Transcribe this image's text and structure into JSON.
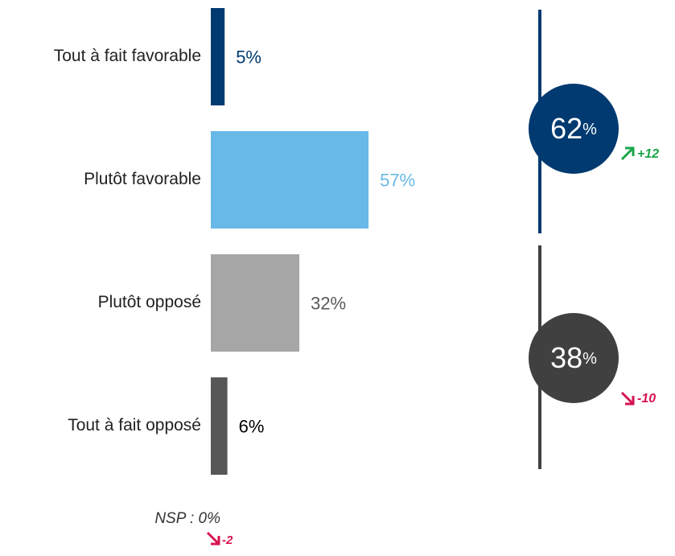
{
  "chart_data": {
    "type": "bar",
    "orientation": "horizontal",
    "categories": [
      "Tout à fait favorable",
      "Plutôt favorable",
      "Plutôt opposé",
      "Tout à fait opposé"
    ],
    "values": [
      5,
      57,
      32,
      6
    ],
    "value_labels": [
      "5%",
      "57%",
      "32%",
      "6%"
    ],
    "colors": [
      "#003a70",
      "#68b8e8",
      "#a6a6a6",
      "#575757"
    ],
    "label_colors": [
      "#003a70",
      "#68b8e8",
      "#595959",
      "#000000"
    ],
    "groups": [
      {
        "value": 62,
        "value_label": "62",
        "unit": "%",
        "change": "+12",
        "color": "#003a70",
        "change_color": "#1aa64a"
      },
      {
        "value": 38,
        "value_label": "38",
        "unit": "%",
        "change": "-10",
        "color": "#404040",
        "change_color": "#d6134f"
      }
    ],
    "note": "NSP : 0%",
    "note_change": "-2",
    "note_change_color": "#d6134f"
  }
}
